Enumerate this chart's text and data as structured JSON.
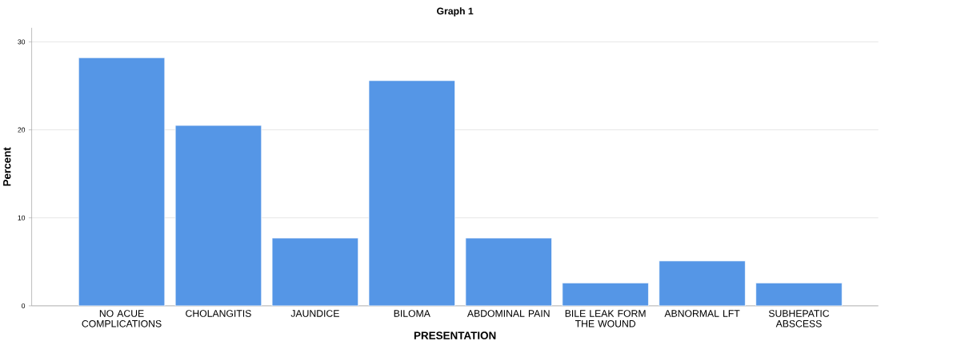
{
  "chart_data": {
    "type": "bar",
    "title": "Graph 1",
    "xlabel": "PRESENTATION",
    "ylabel": "Percent",
    "categories": [
      "NO ACUE COMPLICATIONS",
      "CHOLANGITIS",
      "JAUNDICE",
      "BILOMA",
      "ABDOMINAL PAIN",
      "BILE LEAK FORM THE WOUND",
      "ABNORMAL LFT",
      "SUBHEPATIC ABSCESS"
    ],
    "values": [
      28.2,
      20.5,
      7.7,
      25.6,
      7.7,
      2.6,
      5.1,
      2.6
    ],
    "color": "#5596e6",
    "ylim": [
      0,
      31.6
    ],
    "yticks": [
      0,
      10,
      20,
      30
    ],
    "grid": "y"
  }
}
